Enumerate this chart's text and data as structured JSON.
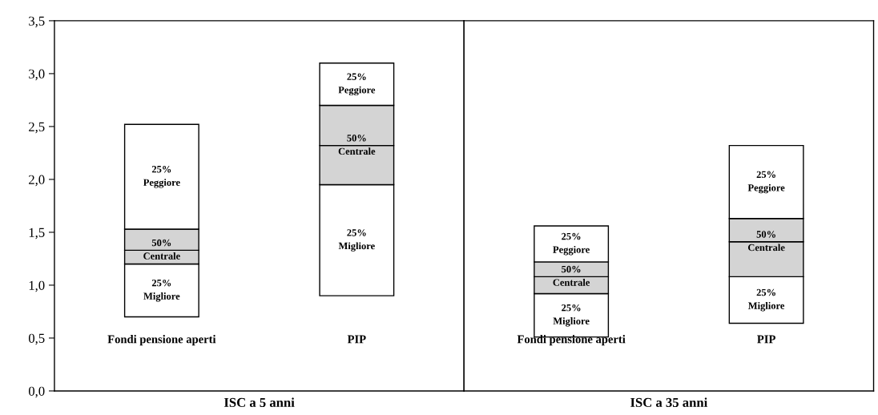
{
  "chart_data": [
    {
      "type": "bar",
      "xlabel": "ISC a 5 anni",
      "categories": [
        "Fondi pensione aperti",
        "PIP"
      ],
      "series": [
        {
          "color": "#ffffff",
          "base": [
            0.7,
            0.9
          ],
          "values": [
            0.5,
            1.05
          ]
        },
        {
          "color": "#d4d4d4",
          "base": [
            1.2,
            1.95
          ],
          "values": [
            0.13,
            0.37
          ]
        },
        {
          "color": "#d4d4d4",
          "base": [
            1.33,
            2.32
          ],
          "values": [
            0.2,
            0.38
          ]
        },
        {
          "color": "#ffffff",
          "base": [
            1.53,
            2.7
          ],
          "values": [
            0.99,
            0.4
          ]
        }
      ],
      "annotations": [
        "25%\nMigliore",
        "50%\nCentrale",
        "25%\nPeggiore"
      ],
      "ylim": [
        0,
        3.5
      ],
      "yticks": [
        {
          "value": 0,
          "label": "0,0"
        },
        {
          "value": 0.5,
          "label": "0,5"
        },
        {
          "value": 1,
          "label": "1,0"
        },
        {
          "value": 1.5,
          "label": "1,5"
        },
        {
          "value": 2,
          "label": "2,0"
        },
        {
          "value": 2.5,
          "label": "2,5"
        },
        {
          "value": 3,
          "label": "3,0"
        },
        {
          "value": 3.5,
          "label": "3,5"
        }
      ]
    },
    {
      "type": "bar",
      "xlabel": "ISC a 35 anni",
      "categories": [
        "Fondi pensione aperti",
        "PIP"
      ],
      "series": [
        {
          "color": "#ffffff",
          "base": [
            0.51,
            0.64
          ],
          "values": [
            0.41,
            0.44
          ]
        },
        {
          "color": "#d4d4d4",
          "base": [
            0.92,
            1.08
          ],
          "values": [
            0.16,
            0.33
          ]
        },
        {
          "color": "#d4d4d4",
          "base": [
            1.08,
            1.41
          ],
          "values": [
            0.14,
            0.22
          ]
        },
        {
          "color": "#ffffff",
          "base": [
            1.22,
            1.63
          ],
          "values": [
            0.34,
            0.69
          ]
        }
      ],
      "annotations": [
        "25%\nMigliore",
        "50%\nCentrale",
        "25%\nPeggiore"
      ],
      "ylim": [
        0,
        3.5
      ],
      "tick_labels": "x"
    }
  ]
}
